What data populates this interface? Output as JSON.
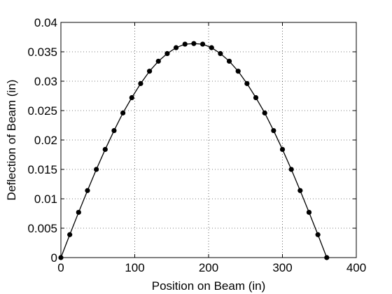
{
  "chart_data": {
    "type": "line",
    "title": "",
    "xlabel": "Position on Beam (in)",
    "ylabel": "Deflection of Beam (in)",
    "xlim": [
      0,
      400
    ],
    "ylim": [
      0,
      0.04
    ],
    "xticks": [
      0,
      100,
      200,
      300,
      400
    ],
    "yticks": [
      0,
      0.005,
      0.01,
      0.015,
      0.02,
      0.025,
      0.03,
      0.035,
      0.04
    ],
    "xtick_labels": [
      "0",
      "100",
      "200",
      "300",
      "400"
    ],
    "ytick_labels": [
      "0",
      "0.005",
      "0.01",
      "0.015",
      "0.02",
      "0.025",
      "0.03",
      "0.035",
      "0.04"
    ],
    "grid": true,
    "grid_style": "dotted",
    "line_color": "#000000",
    "marker": "filled-circle",
    "series": [
      {
        "x": [
          0,
          12,
          24,
          36,
          48,
          60,
          72,
          84,
          96,
          108,
          120,
          132,
          144,
          156,
          168,
          180,
          192,
          204,
          216,
          228,
          240,
          252,
          264,
          276,
          288,
          300,
          312,
          324,
          336,
          348,
          360
        ],
        "y": [
          0,
          0.0039,
          0.0077,
          0.0114,
          0.015,
          0.0184,
          0.0216,
          0.0246,
          0.0272,
          0.0296,
          0.0317,
          0.0334,
          0.0347,
          0.0357,
          0.0363,
          0.0364,
          0.0363,
          0.0357,
          0.0347,
          0.0334,
          0.0317,
          0.0296,
          0.0272,
          0.0246,
          0.0216,
          0.0184,
          0.015,
          0.0114,
          0.0077,
          0.0039,
          0
        ]
      }
    ]
  }
}
